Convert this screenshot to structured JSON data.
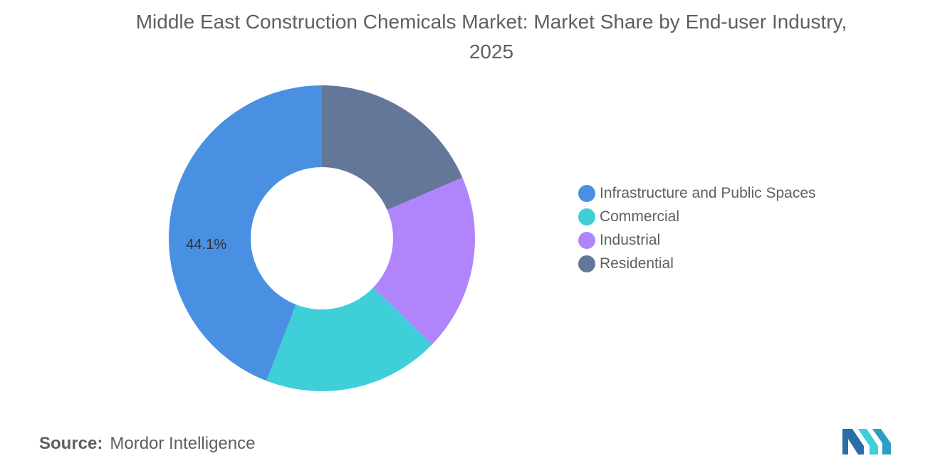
{
  "chart_data": {
    "type": "pie",
    "donut": true,
    "title": "Middle East Construction Chemicals Market: Market Share by End-user Industry, 2025",
    "categories": [
      "Infrastructure and Public Spaces",
      "Commercial",
      "Industrial",
      "Residential"
    ],
    "values": [
      44.1,
      18.7,
      18.7,
      18.5
    ],
    "colors": [
      "#4a90e2",
      "#3ecfd9",
      "#b085fc",
      "#657799"
    ],
    "data_labels": [
      "44.1%",
      "",
      "",
      ""
    ],
    "legend_position": "right",
    "start_angle_deg": 0,
    "direction": "clockwise"
  },
  "footer": {
    "source_label": "Source:",
    "source_value": "Mordor Intelligence",
    "logo_icon": "mordor-intelligence-logo-icon"
  }
}
